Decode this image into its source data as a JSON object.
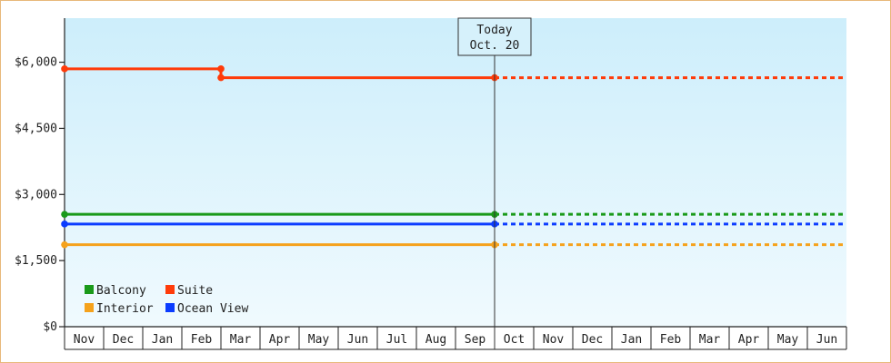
{
  "chart_data": {
    "type": "line",
    "x": [
      "Nov",
      "Dec",
      "Jan",
      "Feb",
      "Mar",
      "Apr",
      "May",
      "Jun",
      "Jul",
      "Aug",
      "Sep",
      "Oct",
      "Nov",
      "Dec",
      "Jan",
      "Feb",
      "Mar",
      "Apr",
      "May",
      "Jun"
    ],
    "today_index": 11,
    "today_marker": {
      "line1": "Today",
      "line2": "Oct. 20"
    },
    "ylim": [
      0,
      7000
    ],
    "yticks": [
      0,
      1500,
      3000,
      4500,
      6000
    ],
    "ytick_labels": [
      "$0",
      "$1,500",
      "$3,000",
      "$4,500",
      "$6,000"
    ],
    "grid": false,
    "legend_placement": "bottom-left",
    "series": [
      {
        "name": "Balcony",
        "color": "#1a9a1a",
        "points": [
          [
            0,
            2550
          ],
          [
            11,
            2550
          ]
        ],
        "forecast_to": 20
      },
      {
        "name": "Suite",
        "color": "#ff3b0a",
        "points": [
          [
            0,
            5850
          ],
          [
            4,
            5850
          ],
          [
            4,
            5650
          ],
          [
            11,
            5650
          ]
        ],
        "forecast_to": 20
      },
      {
        "name": "Interior",
        "color": "#f5a21c",
        "points": [
          [
            0,
            1860
          ],
          [
            11,
            1860
          ]
        ],
        "forecast_to": 20
      },
      {
        "name": "Ocean View",
        "color": "#0b3cff",
        "points": [
          [
            0,
            2330
          ],
          [
            11,
            2330
          ]
        ],
        "forecast_to": 20
      }
    ]
  }
}
